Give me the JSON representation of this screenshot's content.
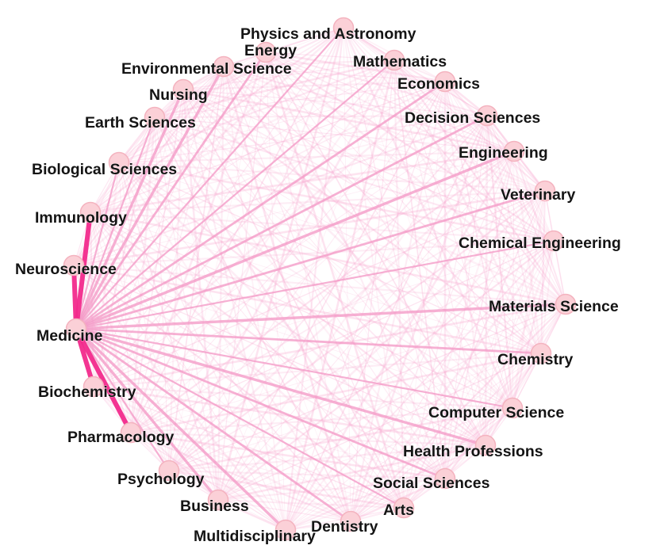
{
  "diagram": {
    "type": "network",
    "layout": "circular",
    "hub": "Medicine",
    "colors": {
      "edge": "#f7a8cf",
      "hub_edge": "#f49ac6",
      "strong_edge": "#f22a8c",
      "node_fill": "#fbd0d7",
      "node_stroke": "#f4b3bf",
      "label": "#141414"
    },
    "nodes": [
      {
        "id": "physics",
        "label": "Physics and Astronomy"
      },
      {
        "id": "energy",
        "label": "Energy"
      },
      {
        "id": "environmental",
        "label": "Environmental Science"
      },
      {
        "id": "mathematics",
        "label": "Mathematics"
      },
      {
        "id": "economics",
        "label": "Economics"
      },
      {
        "id": "nursing",
        "label": "Nursing"
      },
      {
        "id": "earth",
        "label": "Earth Sciences"
      },
      {
        "id": "decision",
        "label": "Decision Sciences"
      },
      {
        "id": "engineering",
        "label": "Engineering"
      },
      {
        "id": "biological",
        "label": "Biological Sciences"
      },
      {
        "id": "veterinary",
        "label": "Veterinary"
      },
      {
        "id": "immunology",
        "label": "Immunology"
      },
      {
        "id": "chemeng",
        "label": "Chemical Engineering"
      },
      {
        "id": "neuroscience",
        "label": "Neuroscience"
      },
      {
        "id": "materials",
        "label": "Materials Science"
      },
      {
        "id": "medicine",
        "label": "Medicine"
      },
      {
        "id": "chemistry",
        "label": "Chemistry"
      },
      {
        "id": "biochemistry",
        "label": "Biochemistry"
      },
      {
        "id": "computer",
        "label": "Computer Science"
      },
      {
        "id": "pharmacology",
        "label": "Pharmacology"
      },
      {
        "id": "health",
        "label": "Health Professions"
      },
      {
        "id": "psychology",
        "label": "Psychology"
      },
      {
        "id": "social",
        "label": "Social Sciences"
      },
      {
        "id": "business",
        "label": "Business"
      },
      {
        "id": "arts",
        "label": "Arts"
      },
      {
        "id": "dentistry",
        "label": "Dentistry"
      },
      {
        "id": "multidisciplinary",
        "label": "Multidisciplinary"
      }
    ],
    "strong_edges": [
      [
        "immunology",
        "medicine"
      ],
      [
        "neuroscience",
        "medicine"
      ],
      [
        "biochemistry",
        "medicine"
      ],
      [
        "pharmacology",
        "medicine"
      ]
    ]
  }
}
